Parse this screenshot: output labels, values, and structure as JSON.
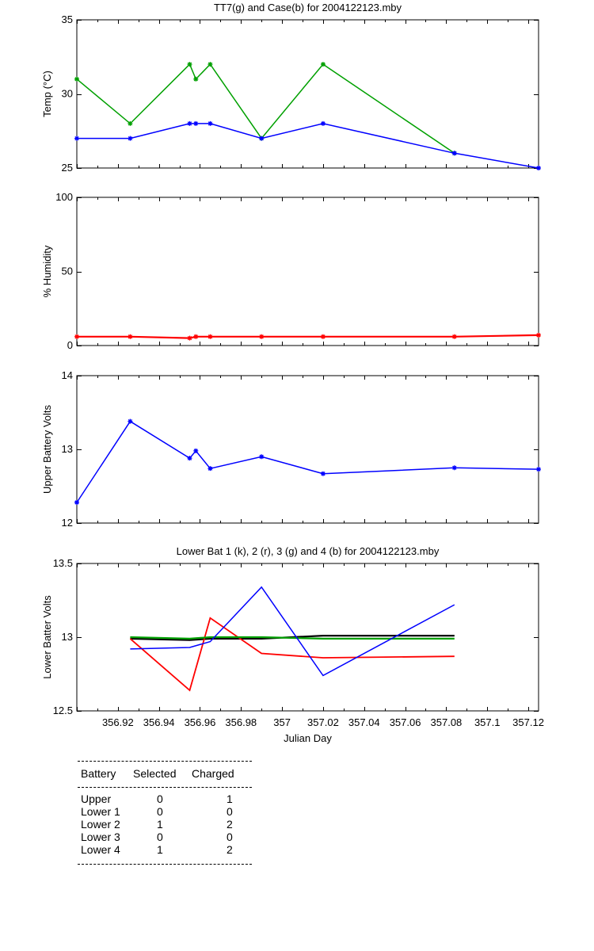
{
  "chart_data": [
    {
      "type": "line",
      "title": "TT7(g) and Case(b) for 2004122123.mby",
      "xlabel": "",
      "ylabel": "Temp  (°C)",
      "xlim": [
        356.9,
        357.125
      ],
      "ylim": [
        25,
        35
      ],
      "yticks": [
        25,
        30,
        35
      ],
      "series": [
        {
          "color": "#00a000",
          "x": [
            356.9,
            356.926,
            356.955,
            356.958,
            356.965,
            356.99,
            357.02,
            357.084
          ],
          "y": [
            31,
            28,
            32,
            31,
            32,
            27,
            32,
            26
          ]
        },
        {
          "color": "#0000ff",
          "x": [
            356.9,
            356.926,
            356.955,
            356.958,
            356.965,
            356.99,
            357.02,
            357.084,
            357.125
          ],
          "y": [
            27,
            27,
            28,
            28,
            28,
            27,
            28,
            26,
            25
          ]
        }
      ]
    },
    {
      "type": "line",
      "title": "",
      "xlabel": "",
      "ylabel": "% Humidity",
      "xlim": [
        356.9,
        357.125
      ],
      "ylim": [
        0,
        100
      ],
      "yticks": [
        0,
        50,
        100
      ],
      "series": [
        {
          "color": "#ff0000",
          "x": [
            356.9,
            356.926,
            356.955,
            356.958,
            356.965,
            356.99,
            357.02,
            357.084,
            357.125
          ],
          "y": [
            6,
            6,
            5,
            6,
            6,
            6,
            6,
            6,
            7
          ]
        }
      ]
    },
    {
      "type": "line",
      "title": "",
      "xlabel": "",
      "ylabel": "Upper Battery Volts",
      "xlim": [
        356.9,
        357.125
      ],
      "ylim": [
        12,
        14
      ],
      "yticks": [
        12,
        13,
        14
      ],
      "series": [
        {
          "color": "#0000ff",
          "x": [
            356.9,
            356.926,
            356.955,
            356.958,
            356.965,
            356.99,
            357.02,
            357.084,
            357.125
          ],
          "y": [
            12.28,
            13.38,
            12.88,
            12.98,
            12.74,
            12.9,
            12.67,
            12.75,
            12.73
          ]
        }
      ]
    },
    {
      "type": "line",
      "title": "Lower Bat 1 (k), 2 (r), 3 (g) and 4 (b) for 2004122123.mby",
      "xlabel": "Julian Day",
      "ylabel": "Lower Batter Volts",
      "xlim": [
        356.9,
        357.125
      ],
      "ylim": [
        12.5,
        13.5
      ],
      "yticks": [
        12.5,
        13,
        13.5
      ],
      "xticks": [
        "356.92",
        "356.94",
        "356.96",
        "356.98",
        "357",
        "357.02",
        "357.04",
        "357.06",
        "357.08",
        "357.1",
        "357.12"
      ],
      "series": [
        {
          "color": "#000000",
          "x": [
            356.926,
            356.955,
            356.965,
            356.99,
            357.02,
            357.084
          ],
          "y": [
            12.99,
            12.98,
            12.99,
            12.99,
            13.01,
            13.01
          ]
        },
        {
          "color": "#ff0000",
          "x": [
            356.926,
            356.955,
            356.965,
            356.99,
            357.02,
            357.084
          ],
          "y": [
            12.99,
            12.64,
            13.13,
            12.89,
            12.86,
            12.87
          ]
        },
        {
          "color": "#00a000",
          "x": [
            356.926,
            356.955,
            356.965,
            356.99,
            357.02,
            357.084
          ],
          "y": [
            13.0,
            12.99,
            13.0,
            13.0,
            12.99,
            12.99
          ]
        },
        {
          "color": "#0000ff",
          "x": [
            356.926,
            356.955,
            356.965,
            356.99,
            357.02,
            357.084
          ],
          "y": [
            12.92,
            12.93,
            12.97,
            13.34,
            12.74,
            13.22
          ]
        }
      ]
    }
  ],
  "battery_table": {
    "headers": [
      "Battery",
      "Selected",
      "Charged"
    ],
    "rows": [
      [
        "Upper",
        "0",
        "1"
      ],
      [
        "Lower 1",
        "0",
        "0"
      ],
      [
        "Lower 2",
        "1",
        "2"
      ],
      [
        "Lower 3",
        "0",
        "0"
      ],
      [
        "Lower 4",
        "1",
        "2"
      ]
    ]
  }
}
